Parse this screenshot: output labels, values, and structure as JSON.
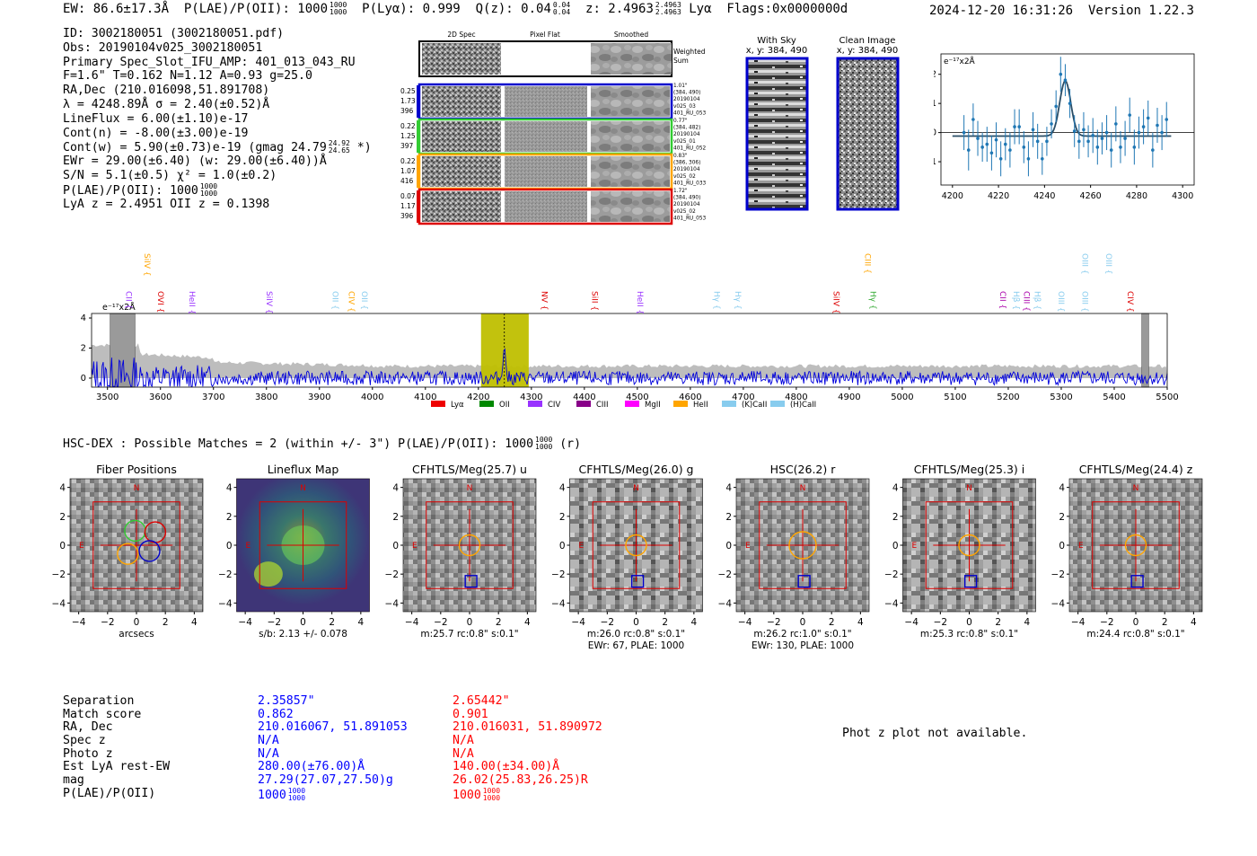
{
  "header": {
    "summary": "EW: 86.6±17.3Å  P(LAE)/P(OII): 1000   P(Lyα): 0.999  Q(z): 0.04   z: 2.4963   Lyα  Flags:0x0000000d",
    "ew": "EW: 86.6±17.3Å",
    "plae_label": "P(LAE)/P(OII): 1000",
    "plae_hi": "1000",
    "plae_lo": "1000",
    "plya": "P(Lyα): 0.999",
    "qz": "Q(z): 0.04",
    "qz_hi": "0.04",
    "qz_lo": "0.04",
    "z": "z: 2.4963",
    "z_hi": "2.4963",
    "z_lo": "2.4963",
    "line": "Lyα",
    "flags": "Flags:0x0000000d",
    "datetime": "2024-12-20 16:31:26",
    "version": "Version 1.22.3"
  },
  "info": {
    "id": "ID: 3002180051 (3002180051.pdf)",
    "obs": "Obs: 20190104v025_3002180051",
    "primary": "Primary Spec_Slot_IFU_AMP: 401_013_043_RU",
    "fparams": "F=1.6\"  T=0.162  N=1.12  A=0.93  g=25.0",
    "radec": "RA,Dec (210.016098,51.891708)",
    "lambda": "λ = 4248.89Å  σ = 2.40(±0.52)Å",
    "lineflux": "LineFlux = 6.00(±1.10)e-17",
    "contn": "Cont(n) = -8.00(±3.00)e-19",
    "contw": "Cont(w) = 5.90(±0.73)e-19 (gmag 24.79",
    "contw_hi": "24.92",
    "contw_lo": "24.65",
    "contw_end": " *)",
    "ewr": "EWr = 29.00(±6.40) (w: 29.00(±6.40))Å",
    "sn": "S/N = 5.1(±0.5)  χ² = 1.0(±0.2)",
    "plae": "P(LAE)/P(OII): 1000",
    "plae_hi": "1000",
    "plae_lo": "1000",
    "zline": "LyA z = 2.4951  OII z = 0.1398"
  },
  "cutouts": {
    "col_labels": [
      "2D Spec",
      "Pixel Flat",
      "Smoothed"
    ],
    "weighted_sum": [
      "Weighted",
      "Sum"
    ],
    "rows": [
      {
        "vals": [
          "0.25",
          "1.73",
          "396"
        ],
        "color": "#0000cc",
        "note": [
          "1.01\"",
          "(384, 490)",
          "20190104",
          "v025_03",
          "401_RU_053"
        ]
      },
      {
        "vals": [
          "0.22",
          "1.25",
          "397"
        ],
        "color": "#33cc33",
        "note": [
          "0.77\"",
          "(384, 482)",
          "20190104",
          "v025_01",
          "401_RU_052"
        ]
      },
      {
        "vals": [
          "0.22",
          "1.07",
          "416"
        ],
        "color": "#ffa500",
        "note": [
          "0.83\"",
          "(386, 306)",
          "20190104",
          "v025_02",
          "401_RU_033"
        ]
      },
      {
        "vals": [
          "0.07",
          "1.17",
          "396"
        ],
        "color": "#dd0000",
        "note": [
          "1.72\"",
          "(384, 490)",
          "20190104",
          "v025_02",
          "401_RU_053"
        ]
      }
    ],
    "with_sky": [
      "With Sky",
      "x, y: 384, 490"
    ],
    "clean": [
      "Clean Image",
      "x, y: 384, 490"
    ]
  },
  "zoom_chart": {
    "type": "scatter",
    "unit_label": "e⁻¹⁷x2Å",
    "xlim": [
      4195,
      4305
    ],
    "ylim": [
      -1.8,
      2.7
    ],
    "xticks": [
      4200,
      4220,
      4240,
      4260,
      4280,
      4300
    ],
    "yticks": [
      -1,
      0,
      1,
      2
    ],
    "color": "#1f77b4",
    "fit": {
      "center": 4249,
      "amp": 1.9,
      "sigma": 2.4,
      "baseline": -0.12
    },
    "points": [
      {
        "x": 4205,
        "y": 0.0,
        "e": 0.6
      },
      {
        "x": 4207,
        "y": -0.6,
        "e": 0.7
      },
      {
        "x": 4209,
        "y": 0.45,
        "e": 0.55
      },
      {
        "x": 4211,
        "y": -0.2,
        "e": 0.6
      },
      {
        "x": 4213,
        "y": -0.5,
        "e": 0.5
      },
      {
        "x": 4215,
        "y": -0.4,
        "e": 0.6
      },
      {
        "x": 4217,
        "y": -0.7,
        "e": 0.6
      },
      {
        "x": 4219,
        "y": -0.25,
        "e": 0.6
      },
      {
        "x": 4221,
        "y": -0.9,
        "e": 0.6
      },
      {
        "x": 4223,
        "y": -0.4,
        "e": 0.55
      },
      {
        "x": 4225,
        "y": -0.6,
        "e": 0.6
      },
      {
        "x": 4227,
        "y": 0.2,
        "e": 0.6
      },
      {
        "x": 4229,
        "y": 0.2,
        "e": 0.6
      },
      {
        "x": 4231,
        "y": -0.5,
        "e": 0.55
      },
      {
        "x": 4233,
        "y": -0.9,
        "e": 0.6
      },
      {
        "x": 4235,
        "y": 0.1,
        "e": 0.6
      },
      {
        "x": 4237,
        "y": -0.3,
        "e": 0.6
      },
      {
        "x": 4239,
        "y": -0.9,
        "e": 0.55
      },
      {
        "x": 4241,
        "y": -0.3,
        "e": 0.5
      },
      {
        "x": 4243,
        "y": 0.3,
        "e": 0.5
      },
      {
        "x": 4245,
        "y": 0.9,
        "e": 0.55
      },
      {
        "x": 4247,
        "y": 2.0,
        "e": 0.6
      },
      {
        "x": 4249,
        "y": 1.8,
        "e": 0.55
      },
      {
        "x": 4251,
        "y": 1.0,
        "e": 0.5
      },
      {
        "x": 4253,
        "y": 0.05,
        "e": 0.55
      },
      {
        "x": 4255,
        "y": -0.3,
        "e": 0.6
      },
      {
        "x": 4257,
        "y": 0.1,
        "e": 0.6
      },
      {
        "x": 4259,
        "y": -0.3,
        "e": 0.55
      },
      {
        "x": 4261,
        "y": -0.1,
        "e": 0.6
      },
      {
        "x": 4263,
        "y": -0.5,
        "e": 0.6
      },
      {
        "x": 4265,
        "y": -0.2,
        "e": 0.55
      },
      {
        "x": 4267,
        "y": 0.0,
        "e": 0.6
      },
      {
        "x": 4269,
        "y": -0.6,
        "e": 0.6
      },
      {
        "x": 4271,
        "y": 0.3,
        "e": 0.6
      },
      {
        "x": 4273,
        "y": -0.5,
        "e": 0.55
      },
      {
        "x": 4275,
        "y": -0.2,
        "e": 0.6
      },
      {
        "x": 4277,
        "y": 0.6,
        "e": 0.6
      },
      {
        "x": 4279,
        "y": -0.5,
        "e": 0.6
      },
      {
        "x": 4281,
        "y": 0.0,
        "e": 0.55
      },
      {
        "x": 4283,
        "y": 0.2,
        "e": 0.6
      },
      {
        "x": 4285,
        "y": 0.5,
        "e": 0.6
      },
      {
        "x": 4287,
        "y": -0.6,
        "e": 0.6
      },
      {
        "x": 4289,
        "y": 0.25,
        "e": 0.6
      },
      {
        "x": 4291,
        "y": 0.0,
        "e": 0.6
      },
      {
        "x": 4293,
        "y": 0.45,
        "e": 0.6
      }
    ]
  },
  "full_spectrum": {
    "type": "line",
    "unit_label": "e⁻¹⁷x2Å",
    "xlim": [
      3470,
      5500
    ],
    "ylim": [
      -0.6,
      4.3
    ],
    "xticks": [
      3500,
      3600,
      3700,
      3800,
      3900,
      4000,
      4100,
      4200,
      4300,
      4400,
      4500,
      4600,
      4700,
      4800,
      4900,
      5000,
      5100,
      5200,
      5300,
      5400,
      5500
    ],
    "yticks": [
      0,
      2,
      4
    ],
    "highlight": {
      "from": 4205,
      "to": 4295,
      "line": 4249
    },
    "masked": [
      [
        3505,
        3552
      ],
      [
        5452,
        5465
      ]
    ],
    "line_markers": [
      {
        "label": "CII",
        "x": 3530,
        "color": "#9933ff",
        "row": 1
      },
      {
        "label": "SiIV",
        "x": 3565,
        "color": "#ffa500",
        "row": 0
      },
      {
        "label": "OVI",
        "x": 3590,
        "color": "#dd0000",
        "row": 1
      },
      {
        "label": "HeII",
        "x": 3650,
        "color": "#9933ff",
        "row": 1
      },
      {
        "label": "SiIV",
        "x": 3795,
        "color": "#9933ff",
        "row": 1
      },
      {
        "label": "OII",
        "x": 3920,
        "color": "#88ccee",
        "row": 1
      },
      {
        "label": "CIV",
        "x": 3950,
        "color": "#ffa500",
        "row": 1
      },
      {
        "label": "OII",
        "x": 3975,
        "color": "#88ccee",
        "row": 1
      },
      {
        "label": "NV",
        "x": 4315,
        "color": "#dd0000",
        "row": 1
      },
      {
        "label": "SiII",
        "x": 4410,
        "color": "#dd0000",
        "row": 1
      },
      {
        "label": "HeII",
        "x": 4495,
        "color": "#9933ff",
        "row": 1
      },
      {
        "label": "Hγ",
        "x": 4640,
        "color": "#88ccee",
        "row": 1
      },
      {
        "label": "Hγ",
        "x": 4680,
        "color": "#88ccee",
        "row": 1
      },
      {
        "label": "SiIV",
        "x": 4865,
        "color": "#dd0000",
        "row": 1
      },
      {
        "label": "CIII",
        "x": 4925,
        "color": "#ffa500",
        "row": 0
      },
      {
        "label": "Hγ",
        "x": 4935,
        "color": "#33aa33",
        "row": 1
      },
      {
        "label": "CII",
        "x": 5180,
        "color": "#aa00aa",
        "row": 1
      },
      {
        "label": "Hβ",
        "x": 5205,
        "color": "#88ccee",
        "row": 1
      },
      {
        "label": "CIII",
        "x": 5225,
        "color": "#aa00aa",
        "row": 1
      },
      {
        "label": "Hβ",
        "x": 5245,
        "color": "#88ccee",
        "row": 1
      },
      {
        "label": "OIII",
        "x": 5290,
        "color": "#88ccee",
        "row": 1
      },
      {
        "label": "OIII",
        "x": 5335,
        "color": "#88ccee",
        "row": 0
      },
      {
        "label": "OIII",
        "x": 5335,
        "color": "#88ccee",
        "row": 1
      },
      {
        "label": "OIII",
        "x": 5380,
        "color": "#88ccee",
        "row": 0
      },
      {
        "label": "CIV",
        "x": 5420,
        "color": "#dd0000",
        "row": 1
      }
    ],
    "legend": [
      {
        "label": "Lyα",
        "color": "#ee0000"
      },
      {
        "label": "OII",
        "color": "#008800"
      },
      {
        "label": "CIV",
        "color": "#9933ff"
      },
      {
        "label": "CIII",
        "color": "#880088"
      },
      {
        "label": "MgII",
        "color": "#ff00ff"
      },
      {
        "label": "HeII",
        "color": "#ffa500"
      },
      {
        "label": "(K)CaII",
        "color": "#88ccee"
      },
      {
        "label": "(H)CaII",
        "color": "#88ccee"
      }
    ]
  },
  "hsc": {
    "line": "HSC-DEX : Possible Matches = 2 (within +/- 3\")  P(LAE)/P(OII): 1000",
    "plae_hi": "1000",
    "plae_lo": "1000",
    "suffix": " (r)"
  },
  "stamps": [
    {
      "title": "Fiber Positions",
      "xlabel": "arcsecs",
      "sub": "",
      "kind": "fiber"
    },
    {
      "title": "Lineflux Map",
      "xlabel": "s/b: 2.13 +/- 0.078",
      "sub": "",
      "kind": "flux"
    },
    {
      "title": "CFHTLS/Meg(25.7) u",
      "xlabel": "m:25.7 rc:0.8\"  s:0.1\"",
      "sub": "",
      "kind": "img"
    },
    {
      "title": "CFHTLS/Meg(26.0) g",
      "xlabel": "m:26.0 rc:0.8\"  s:0.1\"",
      "sub": "EWr: 67, PLAE: 1000",
      "kind": "img"
    },
    {
      "title": "HSC(26.2) r",
      "xlabel": "m:26.2 rc:1.0\"  s:0.1\"",
      "sub": "EWr: 130, PLAE: 1000",
      "kind": "img"
    },
    {
      "title": "CFHTLS/Meg(25.3) i",
      "xlabel": "m:25.3 rc:0.8\"  s:0.1\"",
      "sub": "",
      "kind": "img"
    },
    {
      "title": "CFHTLS/Meg(24.4) z",
      "xlabel": "m:24.4 rc:0.8\"  s:0.1\"",
      "sub": "",
      "kind": "img"
    }
  ],
  "stamp_axes": {
    "ticks": [
      -4,
      -2,
      0,
      2,
      4
    ],
    "n_label": "N",
    "e_label": "E"
  },
  "matches": {
    "labels": [
      "Separation",
      "Match score",
      "RA, Dec",
      "Spec z",
      "Photo z",
      "Est LyA rest-EW",
      "mag",
      "P(LAE)/P(OII)"
    ],
    "m1": {
      "color": "#0000ff",
      "values": [
        "2.35857\"",
        "0.862",
        "210.016067, 51.891053",
        "N/A",
        "N/A",
        "280.00(±76.00)Å",
        "27.29(27.07,27.50)g",
        "1000"
      ],
      "plae_hi": "1000",
      "plae_lo": "1000"
    },
    "m2": {
      "color": "#ff0000",
      "values": [
        "2.65442\"",
        "0.901",
        "210.016031, 51.890972",
        "N/A",
        "N/A",
        "140.00(±34.00)Å",
        "26.02(25.83,26.25)R",
        "1000"
      ],
      "plae_hi": "1000",
      "plae_lo": "1000"
    }
  },
  "photz": "Phot z plot not available."
}
